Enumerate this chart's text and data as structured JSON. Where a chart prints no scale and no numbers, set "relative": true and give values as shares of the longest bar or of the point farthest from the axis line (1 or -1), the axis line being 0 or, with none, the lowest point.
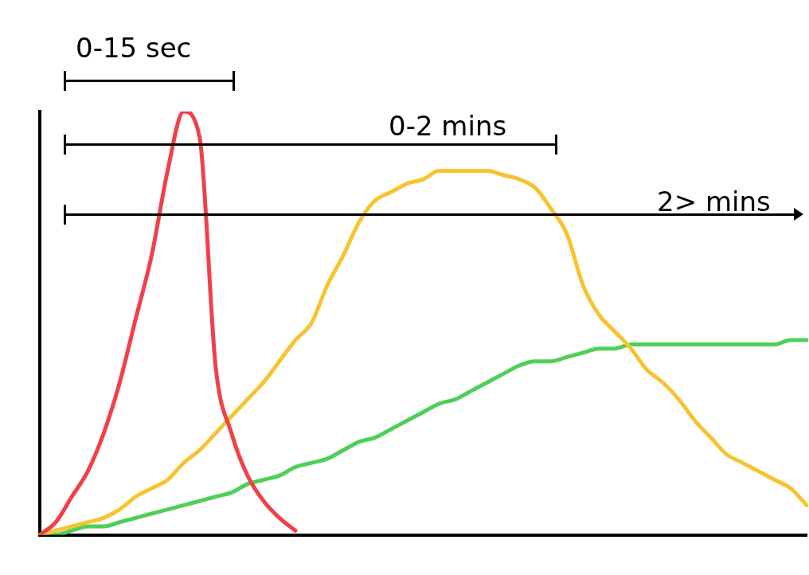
{
  "chart_data": {
    "type": "line",
    "relative": true,
    "grid": false,
    "legend": false,
    "marker": "none",
    "line_style": "solid",
    "categories": [
      null,
      null,
      null,
      null,
      null,
      null,
      null,
      null,
      null,
      null,
      null,
      null,
      null,
      null,
      null,
      null,
      null,
      null,
      null,
      null,
      null,
      null,
      null,
      null,
      null,
      null,
      null,
      null,
      null,
      null,
      null,
      null,
      null,
      null,
      null,
      null,
      null,
      null,
      null,
      null,
      null,
      null,
      null,
      null,
      null,
      null,
      null,
      null,
      null
    ],
    "series": [
      {
        "color": "#f0404a",
        "values": [
          0,
          0.03,
          0.09,
          0.15,
          0.24,
          0.36,
          0.51,
          0.66,
          0.86,
          1,
          0.94,
          0.4,
          0.24,
          0.14,
          0.08,
          0.04,
          0.01,
          null,
          null,
          null,
          null,
          null,
          null,
          null,
          null,
          null,
          null,
          null,
          null,
          null,
          null,
          null,
          null,
          null,
          null,
          null,
          null,
          null,
          null,
          null,
          null,
          null,
          null,
          null,
          null,
          null,
          null,
          null,
          null
        ]
      },
      {
        "color": "#f6c431",
        "values": [
          0,
          0.01,
          0.02,
          0.03,
          0.04,
          0.06,
          0.09,
          0.11,
          0.13,
          0.17,
          0.2,
          0.24,
          0.28,
          0.32,
          0.36,
          0.41,
          0.46,
          0.5,
          0.59,
          0.66,
          0.74,
          0.79,
          0.81,
          0.83,
          0.84,
          0.86,
          0.86,
          0.86,
          0.86,
          0.85,
          0.84,
          0.82,
          0.77,
          0.71,
          0.59,
          0.52,
          0.48,
          0.44,
          0.39,
          0.36,
          0.32,
          0.27,
          0.23,
          0.19,
          0.17,
          0.15,
          0.13,
          0.11,
          0.07
        ]
      },
      {
        "color": "#4fcf5a",
        "values": [
          0,
          0,
          0.01,
          0.02,
          0.02,
          0.03,
          0.04,
          0.05,
          0.06,
          0.07,
          0.08,
          0.09,
          0.1,
          0.12,
          0.13,
          0.14,
          0.16,
          0.17,
          0.18,
          0.2,
          0.22,
          0.23,
          0.25,
          0.27,
          0.29,
          0.31,
          0.32,
          0.34,
          0.36,
          0.38,
          0.4,
          0.41,
          0.41,
          0.42,
          0.43,
          0.44,
          0.44,
          0.45,
          0.45,
          0.45,
          0.45,
          0.45,
          0.45,
          0.45,
          0.45,
          0.45,
          0.45,
          0.46,
          0.46
        ]
      }
    ],
    "annotations": [
      "0-15 sec",
      "0-2 mins",
      "2> mins"
    ]
  }
}
